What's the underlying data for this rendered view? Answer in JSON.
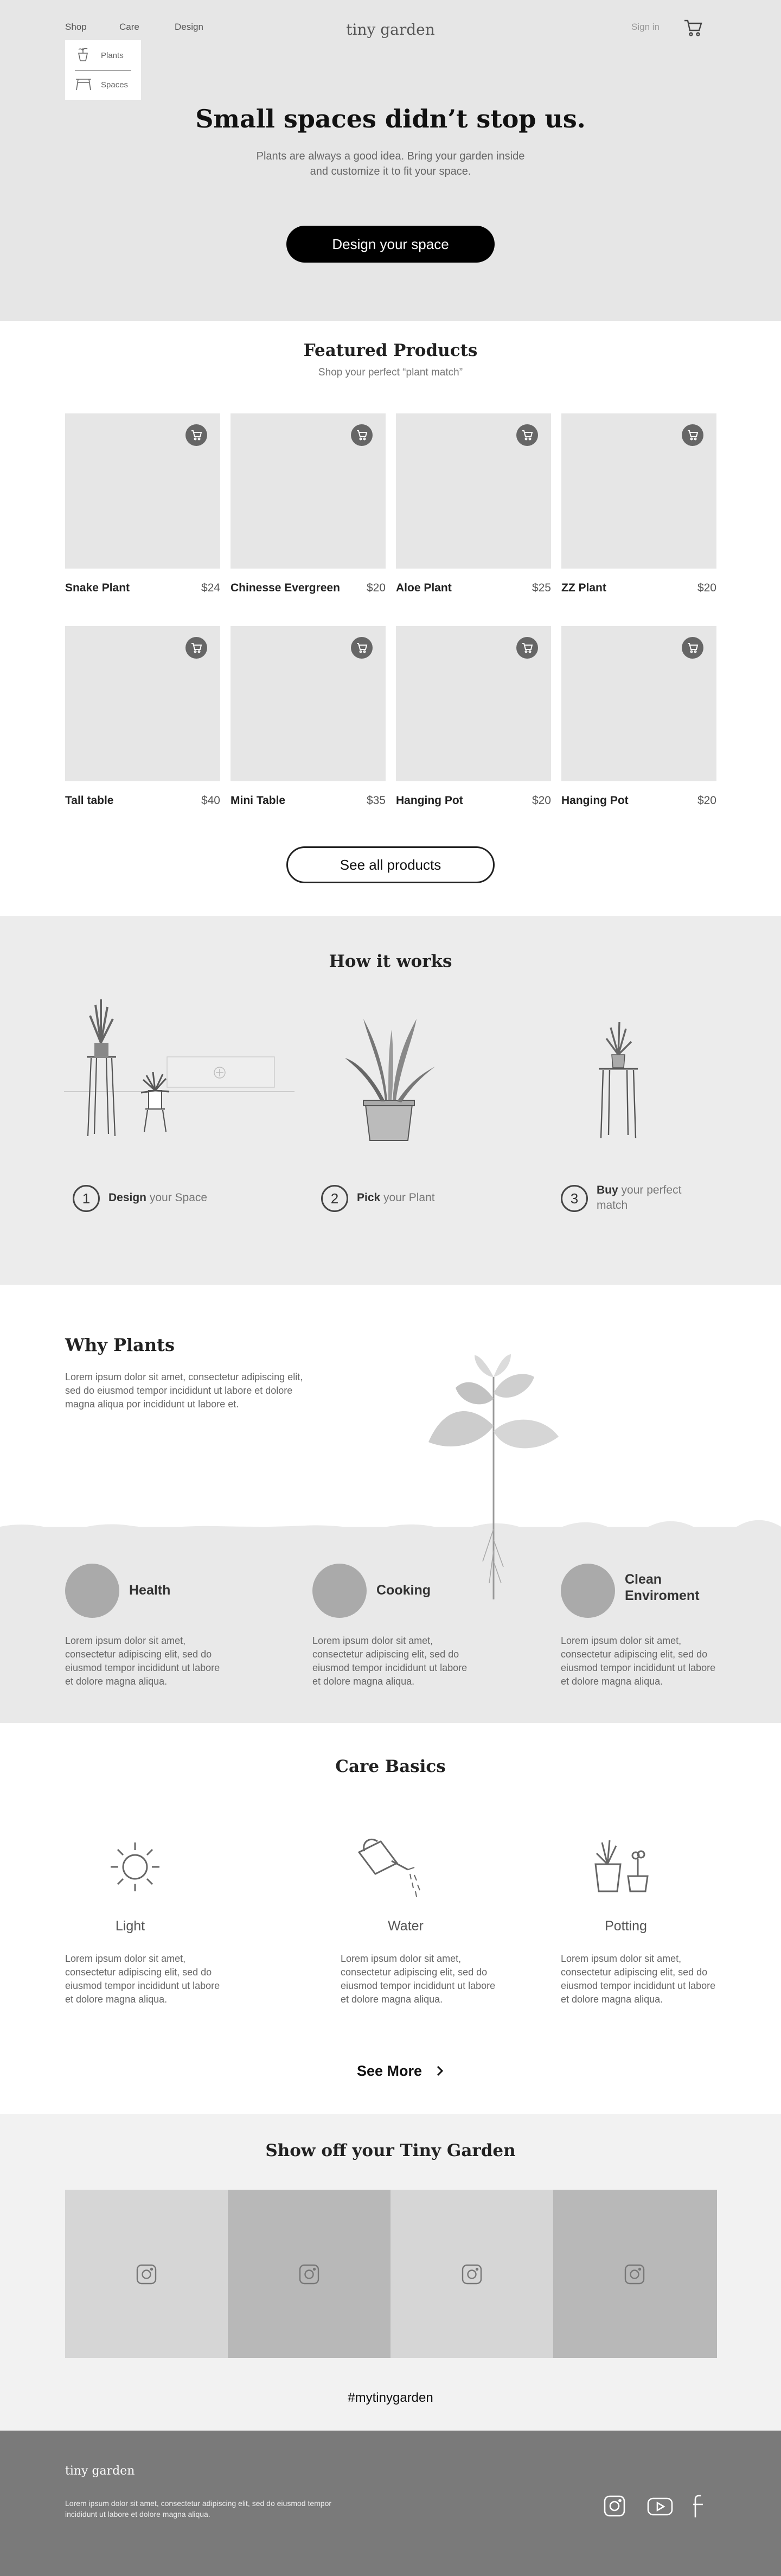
{
  "nav": {
    "shop": "Shop",
    "care": "Care",
    "design": "Design",
    "logo": "tiny garden",
    "sign_in": "Sign in"
  },
  "dropdown": {
    "plants": "Plants",
    "spaces": "Spaces"
  },
  "hero": {
    "title": "Small spaces didn’t stop us.",
    "subtitle": "Plants are always a good idea. Bring your garden inside and customize it to fit your space.",
    "cta": "Design your space"
  },
  "featured": {
    "title": "Featured Products",
    "subtitle": "Shop your perfect “plant match”",
    "products": [
      {
        "name": "Snake Plant",
        "price": "$24"
      },
      {
        "name": "Chinesse Evergreen",
        "price": "$20"
      },
      {
        "name": "Aloe Plant",
        "price": "$25"
      },
      {
        "name": "ZZ Plant",
        "price": "$20"
      },
      {
        "name": "Tall table",
        "price": "$40"
      },
      {
        "name": "Mini Table",
        "price": "$35"
      },
      {
        "name": "Hanging Pot",
        "price": "$20"
      },
      {
        "name": "Hanging Pot",
        "price": "$20"
      }
    ],
    "cta": "See all products"
  },
  "how": {
    "title": "How it works",
    "steps": [
      {
        "num": "1",
        "bold": "Design",
        "rest": " your Space"
      },
      {
        "num": "2",
        "bold": "Pick",
        "rest": " your Plant"
      },
      {
        "num": "3",
        "bold": "Buy",
        "rest": " your perfect match"
      }
    ]
  },
  "why": {
    "title": "Why Plants",
    "text": "Lorem ipsum dolor sit amet, consectetur adipiscing elit, sed do eiusmod tempor incididunt ut labore et dolore magna aliqua por incididunt ut labore et.",
    "benefits": [
      {
        "title": "Health",
        "text": "Lorem ipsum dolor sit amet, consectetur adipiscing elit, sed do eiusmod tempor incididunt ut labore et dolore magna aliqua."
      },
      {
        "title": "Cooking",
        "text": "Lorem ipsum dolor sit amet, consectetur adipiscing elit, sed do eiusmod tempor incididunt ut labore et dolore magna aliqua."
      },
      {
        "title": "Clean Enviroment",
        "text": "Lorem ipsum dolor sit amet, consectetur adipiscing elit, sed do eiusmod tempor incididunt ut labore et dolore magna aliqua."
      }
    ]
  },
  "care": {
    "title": "Care Basics",
    "items": [
      {
        "title": "Light",
        "text": "Lorem ipsum dolor sit amet, consectetur adipiscing elit, sed do eiusmod tempor incididunt ut labore et dolore magna aliqua."
      },
      {
        "title": "Water",
        "text": "Lorem ipsum dolor sit amet, consectetur adipiscing elit, sed do eiusmod tempor incididunt ut labore et dolore magna aliqua."
      },
      {
        "title": "Potting",
        "text": "Lorem ipsum dolor sit amet, consectetur adipiscing elit, sed do eiusmod tempor incididunt ut labore et dolore magna aliqua."
      }
    ],
    "see_more": "See More"
  },
  "show": {
    "title": "Show off your Tiny Garden",
    "hashtag": "#mytinygarden"
  },
  "footer": {
    "logo": "tiny garden",
    "text": "Lorem ipsum dolor sit amet, consectetur adipiscing elit, sed do eiusmod tempor incididunt ut labore et dolore magna aliqua."
  },
  "icons": [
    "cart-icon",
    "plant-pot-icon",
    "table-icon",
    "add-to-cart-icon",
    "sun-icon",
    "watering-can-icon",
    "potted-plants-icon",
    "chevron-right-icon",
    "instagram-icon",
    "youtube-icon",
    "facebook-icon"
  ],
  "colors": {
    "hero_bg": "#e6e6e6",
    "dark_button": "#000000",
    "footer_bg": "#7a7a7a",
    "tile_light": "#d6d6d6",
    "tile_dark": "#b8b8b8"
  }
}
